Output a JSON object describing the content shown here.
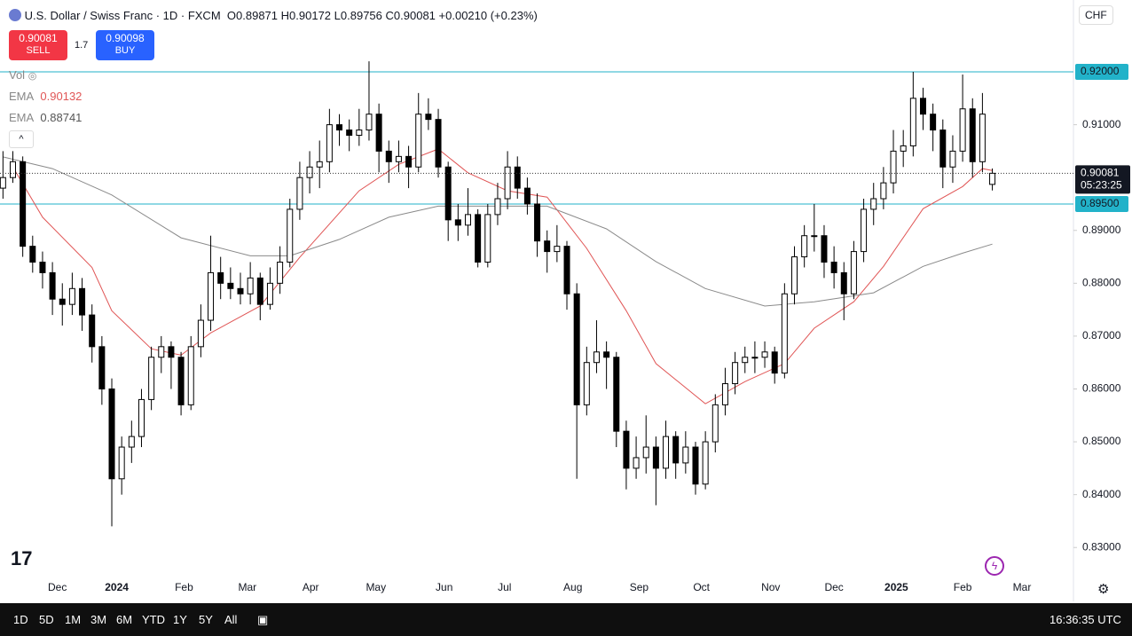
{
  "ui": {
    "symbol": "U.S. Dollar / Swiss Franc · 1D · FXCM",
    "o": "O",
    "h": "H",
    "l": "L",
    "c": "C",
    "change": "+0.00210 (+0.23%)",
    "currency": "CHF",
    "sell_price": "0.90081",
    "sell": "SELL",
    "spread": "1.7",
    "buy_price": "0.90098",
    "buy": "BUY",
    "vol": "Vol",
    "ema_a": "EMA",
    "ema_b": "EMA",
    "countdown": "05:23:25",
    "ranges": [
      "1D",
      "5D",
      "1M",
      "3M",
      "6M",
      "YTD",
      "1Y",
      "5Y",
      "All"
    ],
    "clock": "16:36:35 UTC"
  },
  "chart_data": {
    "type": "candlestick",
    "up_color": "#ffffff",
    "down_color": "#000000",
    "wick_color": "#000000",
    "ylim": [
      0.8198,
      0.9336
    ],
    "xlim": [
      -0.3,
      108.2
    ],
    "yticks": [
      {
        "value": 0.91,
        "label": "0.91000"
      },
      {
        "value": 0.89,
        "label": "0.89000"
      },
      {
        "value": 0.88,
        "label": "0.88000"
      },
      {
        "value": 0.87,
        "label": "0.87000"
      },
      {
        "value": 0.86,
        "label": "0.86000"
      },
      {
        "value": 0.85,
        "label": "0.85000"
      },
      {
        "value": 0.84,
        "label": "0.84000"
      },
      {
        "value": 0.83,
        "label": "0.83000"
      }
    ],
    "xticks": [
      {
        "value": 5.5,
        "label": "Dec"
      },
      {
        "value": 11.5,
        "label": "2024"
      },
      {
        "value": 18.3,
        "label": "Feb"
      },
      {
        "value": 24.7,
        "label": "Mar"
      },
      {
        "value": 31.1,
        "label": "Apr"
      },
      {
        "value": 37.7,
        "label": "May"
      },
      {
        "value": 44.6,
        "label": "Jun"
      },
      {
        "value": 50.7,
        "label": "Jul"
      },
      {
        "value": 57.6,
        "label": "Aug"
      },
      {
        "value": 64.3,
        "label": "Sep"
      },
      {
        "value": 70.6,
        "label": "Oct"
      },
      {
        "value": 77.6,
        "label": "Nov"
      },
      {
        "value": 84,
        "label": "Dec"
      },
      {
        "value": 90.3,
        "label": "2025"
      },
      {
        "value": 97,
        "label": "Feb"
      },
      {
        "value": 103,
        "label": "Mar"
      }
    ],
    "levels": {
      "color": "#22b2c9",
      "items": [
        {
          "value": 0.92,
          "label": "0.92000"
        },
        {
          "value": 0.895,
          "label": "0.89500"
        }
      ]
    },
    "ohlc": [
      [
        0.898,
        0.905,
        0.896,
        0.9
      ],
      [
        0.9,
        0.905,
        0.899,
        0.903
      ],
      [
        0.903,
        0.904,
        0.885,
        0.887
      ],
      [
        0.887,
        0.889,
        0.882,
        0.884
      ],
      [
        0.884,
        0.886,
        0.879,
        0.882
      ],
      [
        0.882,
        0.884,
        0.874,
        0.877
      ],
      [
        0.877,
        0.88,
        0.872,
        0.876
      ],
      [
        0.876,
        0.882,
        0.874,
        0.879
      ],
      [
        0.879,
        0.881,
        0.871,
        0.874
      ],
      [
        0.874,
        0.876,
        0.865,
        0.868
      ],
      [
        0.868,
        0.87,
        0.857,
        0.86
      ],
      [
        0.86,
        0.862,
        0.834,
        0.843
      ],
      [
        0.843,
        0.851,
        0.84,
        0.849
      ],
      [
        0.849,
        0.854,
        0.846,
        0.851
      ],
      [
        0.851,
        0.86,
        0.849,
        0.858
      ],
      [
        0.858,
        0.868,
        0.856,
        0.866
      ],
      [
        0.866,
        0.87,
        0.863,
        0.868
      ],
      [
        0.868,
        0.869,
        0.86,
        0.866
      ],
      [
        0.866,
        0.867,
        0.855,
        0.857
      ],
      [
        0.857,
        0.87,
        0.856,
        0.868
      ],
      [
        0.868,
        0.876,
        0.866,
        0.873
      ],
      [
        0.873,
        0.889,
        0.871,
        0.882
      ],
      [
        0.882,
        0.885,
        0.877,
        0.88
      ],
      [
        0.88,
        0.883,
        0.877,
        0.879
      ],
      [
        0.879,
        0.882,
        0.876,
        0.878
      ],
      [
        0.878,
        0.884,
        0.876,
        0.881
      ],
      [
        0.881,
        0.882,
        0.873,
        0.876
      ],
      [
        0.876,
        0.883,
        0.875,
        0.88
      ],
      [
        0.88,
        0.887,
        0.878,
        0.884
      ],
      [
        0.884,
        0.896,
        0.883,
        0.894
      ],
      [
        0.894,
        0.903,
        0.892,
        0.9
      ],
      [
        0.9,
        0.905,
        0.897,
        0.902
      ],
      [
        0.902,
        0.907,
        0.898,
        0.903
      ],
      [
        0.903,
        0.913,
        0.901,
        0.91
      ],
      [
        0.91,
        0.912,
        0.906,
        0.909
      ],
      [
        0.909,
        0.911,
        0.905,
        0.908
      ],
      [
        0.908,
        0.913,
        0.906,
        0.909
      ],
      [
        0.909,
        0.922,
        0.907,
        0.912
      ],
      [
        0.912,
        0.914,
        0.901,
        0.905
      ],
      [
        0.905,
        0.907,
        0.899,
        0.903
      ],
      [
        0.903,
        0.907,
        0.901,
        0.904
      ],
      [
        0.904,
        0.906,
        0.898,
        0.902
      ],
      [
        0.902,
        0.916,
        0.901,
        0.912
      ],
      [
        0.912,
        0.915,
        0.909,
        0.911
      ],
      [
        0.911,
        0.913,
        0.9,
        0.902
      ],
      [
        0.902,
        0.903,
        0.888,
        0.892
      ],
      [
        0.892,
        0.895,
        0.888,
        0.891
      ],
      [
        0.891,
        0.898,
        0.889,
        0.893
      ],
      [
        0.893,
        0.894,
        0.883,
        0.884
      ],
      [
        0.884,
        0.895,
        0.883,
        0.893
      ],
      [
        0.893,
        0.899,
        0.891,
        0.896
      ],
      [
        0.896,
        0.905,
        0.894,
        0.902
      ],
      [
        0.902,
        0.904,
        0.896,
        0.898
      ],
      [
        0.898,
        0.9,
        0.893,
        0.895
      ],
      [
        0.895,
        0.897,
        0.885,
        0.888
      ],
      [
        0.888,
        0.89,
        0.882,
        0.886
      ],
      [
        0.886,
        0.891,
        0.884,
        0.887
      ],
      [
        0.887,
        0.888,
        0.875,
        0.878
      ],
      [
        0.878,
        0.88,
        0.843,
        0.857
      ],
      [
        0.857,
        0.868,
        0.855,
        0.865
      ],
      [
        0.865,
        0.873,
        0.863,
        0.867
      ],
      [
        0.867,
        0.869,
        0.86,
        0.866
      ],
      [
        0.866,
        0.867,
        0.849,
        0.852
      ],
      [
        0.852,
        0.854,
        0.841,
        0.845
      ],
      [
        0.845,
        0.851,
        0.843,
        0.847
      ],
      [
        0.847,
        0.855,
        0.844,
        0.849
      ],
      [
        0.849,
        0.851,
        0.838,
        0.845
      ],
      [
        0.845,
        0.854,
        0.843,
        0.851
      ],
      [
        0.851,
        0.852,
        0.843,
        0.846
      ],
      [
        0.846,
        0.852,
        0.844,
        0.849
      ],
      [
        0.849,
        0.85,
        0.84,
        0.842
      ],
      [
        0.842,
        0.852,
        0.841,
        0.85
      ],
      [
        0.85,
        0.859,
        0.848,
        0.857
      ],
      [
        0.857,
        0.864,
        0.855,
        0.861
      ],
      [
        0.861,
        0.867,
        0.859,
        0.865
      ],
      [
        0.865,
        0.868,
        0.863,
        0.866
      ],
      [
        0.866,
        0.869,
        0.863,
        0.866
      ],
      [
        0.866,
        0.869,
        0.864,
        0.867
      ],
      [
        0.867,
        0.868,
        0.861,
        0.863
      ],
      [
        0.863,
        0.88,
        0.862,
        0.878
      ],
      [
        0.878,
        0.887,
        0.876,
        0.885
      ],
      [
        0.885,
        0.891,
        0.883,
        0.889
      ],
      [
        0.889,
        0.895,
        0.886,
        0.889
      ],
      [
        0.889,
        0.891,
        0.881,
        0.884
      ],
      [
        0.884,
        0.887,
        0.879,
        0.882
      ],
      [
        0.882,
        0.884,
        0.873,
        0.878
      ],
      [
        0.878,
        0.888,
        0.877,
        0.886
      ],
      [
        0.886,
        0.896,
        0.884,
        0.894
      ],
      [
        0.894,
        0.899,
        0.891,
        0.896
      ],
      [
        0.896,
        0.902,
        0.894,
        0.899
      ],
      [
        0.899,
        0.909,
        0.897,
        0.905
      ],
      [
        0.905,
        0.909,
        0.902,
        0.906
      ],
      [
        0.906,
        0.92,
        0.904,
        0.915
      ],
      [
        0.915,
        0.917,
        0.909,
        0.912
      ],
      [
        0.912,
        0.914,
        0.905,
        0.909
      ],
      [
        0.909,
        0.911,
        0.898,
        0.902
      ],
      [
        0.902,
        0.908,
        0.899,
        0.905
      ],
      [
        0.905,
        0.9195,
        0.903,
        0.913
      ],
      [
        0.913,
        0.915,
        0.9,
        0.903
      ],
      [
        0.903,
        0.916,
        0.901,
        0.912
      ],
      [
        0.89871,
        0.90172,
        0.89756,
        0.90081
      ]
    ],
    "lines": [
      {
        "color": "#e05555",
        "x": [
          1,
          4,
          9,
          11,
          15,
          18,
          21,
          26,
          30,
          36,
          40,
          44,
          47,
          51,
          55,
          59,
          63,
          66,
          71,
          75,
          79,
          82,
          86,
          89,
          93,
          97,
          99,
          100
        ],
        "values": [
          0.902,
          0.8925,
          0.883,
          0.8748,
          0.8676,
          0.8664,
          0.8706,
          0.8757,
          0.8849,
          0.8975,
          0.9025,
          0.9054,
          0.9009,
          0.8975,
          0.8963,
          0.8866,
          0.8748,
          0.8648,
          0.8572,
          0.8614,
          0.8648,
          0.8715,
          0.8765,
          0.8832,
          0.8941,
          0.8983,
          0.9017,
          0.90132
        ]
      },
      {
        "color": "#8a8a8a",
        "x": [
          0,
          5,
          11,
          18,
          25,
          29,
          34,
          39,
          44,
          50,
          55,
          61,
          66,
          71,
          77,
          82,
          88,
          93,
          97,
          100
        ],
        "values": [
          0.9039,
          0.9017,
          0.8967,
          0.8886,
          0.8852,
          0.8852,
          0.8883,
          0.8925,
          0.8946,
          0.8946,
          0.8946,
          0.8903,
          0.8841,
          0.879,
          0.8757,
          0.8765,
          0.8782,
          0.8832,
          0.8857,
          0.88741
        ]
      }
    ]
  }
}
